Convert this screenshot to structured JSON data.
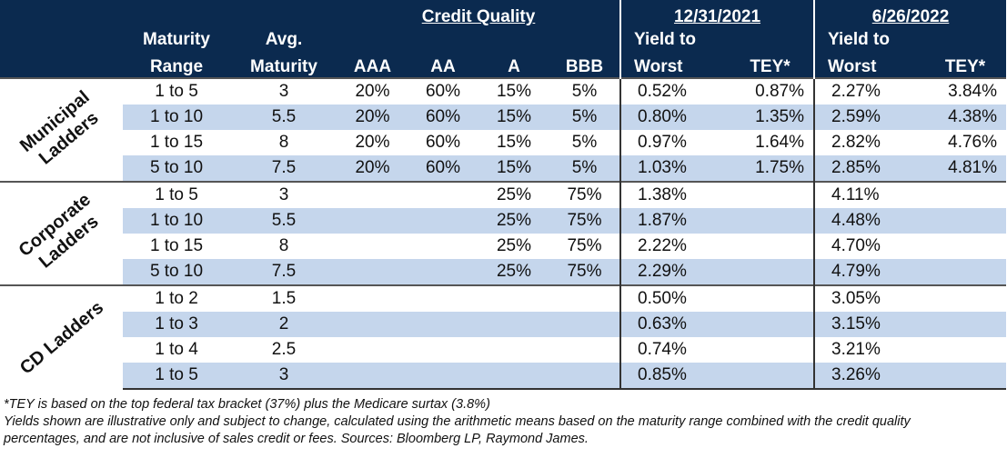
{
  "header": {
    "credit_quality": "Credit Quality",
    "date1": "12/31/2021",
    "date2": "6/26/2022",
    "maturity_line1": "Maturity",
    "maturity_line2": "Range",
    "avg_line1": "Avg.",
    "avg_line2": "Maturity",
    "aaa": "AAA",
    "aa": "AA",
    "a": "A",
    "bbb": "BBB",
    "ytw1_line1": "Yield to",
    "ytw1_line2": "Worst",
    "tey1": "TEY*",
    "ytw2_line1": "Yield to",
    "ytw2_line2": "Worst",
    "tey2": "TEY*"
  },
  "groups": [
    {
      "label_line1": "Municipal",
      "label_line2": "Ladders",
      "rows": [
        {
          "range": "1 to 5",
          "avg": "3",
          "aaa": "20%",
          "aa": "60%",
          "a": "15%",
          "bbb": "5%",
          "ytw1": "0.52%",
          "tey1": "0.87%",
          "ytw2": "2.27%",
          "tey2": "3.84%"
        },
        {
          "range": "1 to 10",
          "avg": "5.5",
          "aaa": "20%",
          "aa": "60%",
          "a": "15%",
          "bbb": "5%",
          "ytw1": "0.80%",
          "tey1": "1.35%",
          "ytw2": "2.59%",
          "tey2": "4.38%"
        },
        {
          "range": "1 to 15",
          "avg": "8",
          "aaa": "20%",
          "aa": "60%",
          "a": "15%",
          "bbb": "5%",
          "ytw1": "0.97%",
          "tey1": "1.64%",
          "ytw2": "2.82%",
          "tey2": "4.76%"
        },
        {
          "range": "5 to 10",
          "avg": "7.5",
          "aaa": "20%",
          "aa": "60%",
          "a": "15%",
          "bbb": "5%",
          "ytw1": "1.03%",
          "tey1": "1.75%",
          "ytw2": "2.85%",
          "tey2": "4.81%"
        }
      ]
    },
    {
      "label_line1": "Corporate",
      "label_line2": "Ladders",
      "rows": [
        {
          "range": "1 to 5",
          "avg": "3",
          "aaa": "",
          "aa": "",
          "a": "25%",
          "bbb": "75%",
          "ytw1": "1.38%",
          "tey1": "",
          "ytw2": "4.11%",
          "tey2": ""
        },
        {
          "range": "1 to 10",
          "avg": "5.5",
          "aaa": "",
          "aa": "",
          "a": "25%",
          "bbb": "75%",
          "ytw1": "1.87%",
          "tey1": "",
          "ytw2": "4.48%",
          "tey2": ""
        },
        {
          "range": "1 to 15",
          "avg": "8",
          "aaa": "",
          "aa": "",
          "a": "25%",
          "bbb": "75%",
          "ytw1": "2.22%",
          "tey1": "",
          "ytw2": "4.70%",
          "tey2": ""
        },
        {
          "range": "5 to 10",
          "avg": "7.5",
          "aaa": "",
          "aa": "",
          "a": "25%",
          "bbb": "75%",
          "ytw1": "2.29%",
          "tey1": "",
          "ytw2": "4.79%",
          "tey2": ""
        }
      ]
    },
    {
      "label_line1": "CD Ladders",
      "label_line2": "",
      "rows": [
        {
          "range": "1 to 2",
          "avg": "1.5",
          "aaa": "",
          "aa": "",
          "a": "",
          "bbb": "",
          "ytw1": "0.50%",
          "tey1": "",
          "ytw2": "3.05%",
          "tey2": ""
        },
        {
          "range": "1 to 3",
          "avg": "2",
          "aaa": "",
          "aa": "",
          "a": "",
          "bbb": "",
          "ytw1": "0.63%",
          "tey1": "",
          "ytw2": "3.15%",
          "tey2": ""
        },
        {
          "range": "1 to 4",
          "avg": "2.5",
          "aaa": "",
          "aa": "",
          "a": "",
          "bbb": "",
          "ytw1": "0.74%",
          "tey1": "",
          "ytw2": "3.21%",
          "tey2": ""
        },
        {
          "range": "1 to 5",
          "avg": "3",
          "aaa": "",
          "aa": "",
          "a": "",
          "bbb": "",
          "ytw1": "0.85%",
          "tey1": "",
          "ytw2": "3.26%",
          "tey2": ""
        }
      ]
    }
  ],
  "notes": {
    "line1": "*TEY is based on the top federal tax bracket (37%) plus the Medicare surtax (3.8%)",
    "line2": "Yields shown are illustrative only and subject to change, calculated using the arithmetic means based on the maturity range combined with the credit quality",
    "line3": "percentages, and are not inclusive of sales credit or fees. Sources: Bloomberg LP, Raymond James."
  },
  "colors": {
    "header_bg": "#0b2a4f",
    "stripe": "#c5d6ec"
  }
}
